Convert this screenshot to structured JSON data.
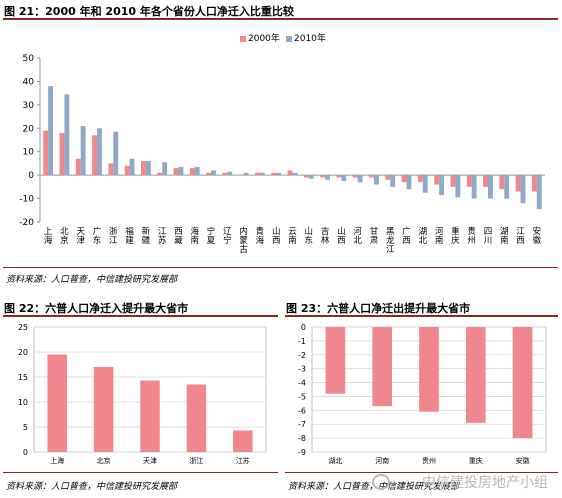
{
  "top": {
    "title": "图 21：2000 年和 2010 年各个省份人口净迁入比重比较",
    "source": "资料来源：人口普查，中信建投研究发展部"
  },
  "bottom_left": {
    "title": "图 22：六普人口净迁入提升最大省市",
    "source": "资料来源：人口普查，中信建投研究发展部"
  },
  "bottom_right": {
    "title": "图 23：六普人口净迁出提升最大省市",
    "source": "资料来源：人口普查，中信建投研究发展部"
  },
  "watermark": "中信建投房地产小组",
  "colors": {
    "series_2000": "#f0878c",
    "series_2010": "#8eaac6",
    "bar": "#f0878c",
    "axis": "#999999",
    "grid": "#d9d9d9",
    "rule": "#8a2a1e"
  },
  "chart_data": [
    {
      "type": "bar",
      "categories": [
        "上海",
        "北京",
        "天津",
        "广东",
        "浙江",
        "福建",
        "新疆",
        "江苏",
        "西藏",
        "海南",
        "宁夏",
        "辽宁",
        "内蒙古",
        "青海",
        "山西",
        "云南",
        "山东",
        "吉林",
        "山西",
        "河北",
        "甘肃",
        "黑龙江",
        "广西",
        "湖北",
        "河南",
        "重庆",
        "贵州",
        "四川",
        "湖南",
        "江西",
        "安徽"
      ],
      "series": [
        {
          "name": "2000年",
          "values": [
            19,
            18,
            7,
            17,
            5,
            4,
            6,
            1,
            3,
            3,
            1,
            1,
            0,
            1,
            1,
            2,
            -1,
            -1,
            -1,
            -1,
            -1,
            -2,
            -3,
            -3,
            -4,
            -5,
            -5,
            -5,
            -6,
            -7,
            -7
          ]
        },
        {
          "name": "2010年",
          "values": [
            38,
            34.5,
            21,
            20,
            18.5,
            7,
            6,
            5.5,
            3.5,
            3.5,
            2,
            1.5,
            1,
            1,
            1,
            1,
            -1.5,
            -2,
            -2.5,
            -3,
            -4,
            -5,
            -6,
            -7.5,
            -8.5,
            -9.5,
            -10,
            -10,
            -10,
            -12,
            -14.5
          ]
        }
      ],
      "ylim": [
        -20,
        50
      ],
      "yticks": [
        -20,
        -10,
        0,
        10,
        20,
        30,
        40,
        50
      ],
      "legend": "top-right",
      "grid": false
    },
    {
      "type": "bar",
      "categories": [
        "上海",
        "北京",
        "天津",
        "浙江",
        "江苏"
      ],
      "values": [
        19.5,
        17,
        14.3,
        13.5,
        4.3
      ],
      "ylim": [
        0,
        25
      ],
      "yticks": [
        0,
        5,
        10,
        15,
        20,
        25
      ],
      "grid": true
    },
    {
      "type": "bar",
      "categories": [
        "湖北",
        "河南",
        "贵州",
        "重庆",
        "安徽"
      ],
      "values": [
        -4.8,
        -5.7,
        -6.1,
        -6.9,
        -8.0
      ],
      "ylim": [
        -9,
        0
      ],
      "yticks": [
        -9,
        -8,
        -7,
        -6,
        -5,
        -4,
        -3,
        -2,
        -1,
        0
      ],
      "grid": true
    }
  ]
}
